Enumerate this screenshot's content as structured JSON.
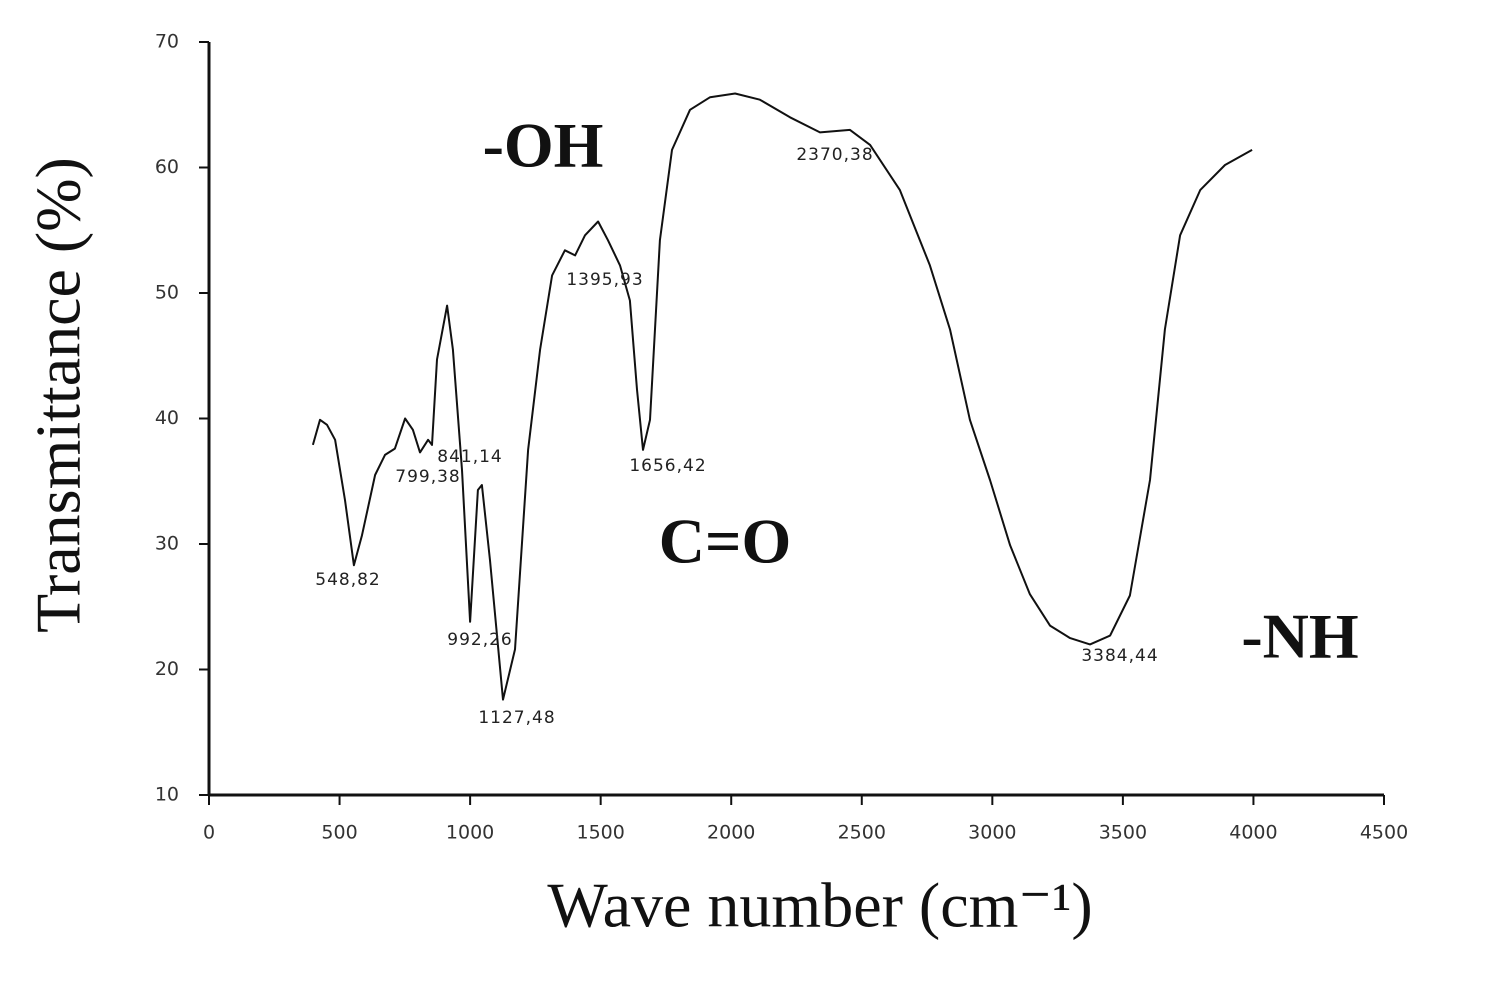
{
  "chart_data": {
    "type": "line",
    "x_label": "Wave number (cm⁻¹)",
    "y_label": "Transmittance (%)",
    "xlim": [
      0,
      4500
    ],
    "xticks": [
      0,
      500,
      1000,
      1500,
      2000,
      2500,
      3000,
      3500,
      4000,
      4500
    ],
    "ylim": [
      10,
      70
    ],
    "yticks": [
      10,
      20,
      30,
      40,
      50,
      60,
      70
    ],
    "grid": false,
    "series": [
      {
        "color": "#111111",
        "x": [
          398,
          425,
          452,
          483,
          521,
          555,
          586,
          636,
          674,
          712,
          751,
          781,
          808,
          839,
          854,
          873,
          912,
          934,
          969,
          1000,
          1030,
          1045,
          1076,
          1126,
          1172,
          1222,
          1268,
          1314,
          1363,
          1402,
          1440,
          1490,
          1528,
          1574,
          1612,
          1639,
          1662,
          1689,
          1727,
          1773,
          1842,
          1919,
          2015,
          2110,
          2225,
          2340,
          2455,
          2532,
          2646,
          2761,
          2838,
          2914,
          2991,
          3068,
          3144,
          3221,
          3298,
          3374,
          3451,
          3527,
          3604,
          3661,
          3719,
          3796,
          3891,
          3995
        ],
        "values": [
          37.9,
          39.9,
          39.5,
          38.3,
          33.5,
          28.3,
          30.7,
          35.5,
          37.1,
          37.6,
          40.0,
          39.1,
          37.3,
          38.3,
          37.9,
          44.7,
          49.0,
          45.5,
          35.9,
          23.8,
          34.3,
          34.7,
          28.7,
          17.6,
          21.6,
          37.5,
          45.5,
          51.4,
          53.4,
          53.0,
          54.6,
          55.7,
          54.2,
          52.2,
          49.4,
          42.3,
          37.5,
          39.9,
          54.2,
          61.4,
          64.6,
          65.6,
          65.9,
          65.4,
          64.0,
          62.8,
          63.0,
          61.8,
          58.2,
          52.2,
          47.1,
          39.9,
          35.1,
          29.9,
          26.0,
          23.5,
          22.5,
          22.0,
          22.7,
          25.9,
          35.1,
          47.1,
          54.6,
          58.2,
          60.2,
          61.4
        ]
      }
    ],
    "peak_labels": [
      "548,82",
      "799,38",
      "841,14",
      "992,26",
      "1127,48",
      "1395,93",
      "1656,42",
      "2370,38",
      "3384,44"
    ],
    "annotations": [
      "-OH",
      "C=O",
      "-NH"
    ]
  }
}
